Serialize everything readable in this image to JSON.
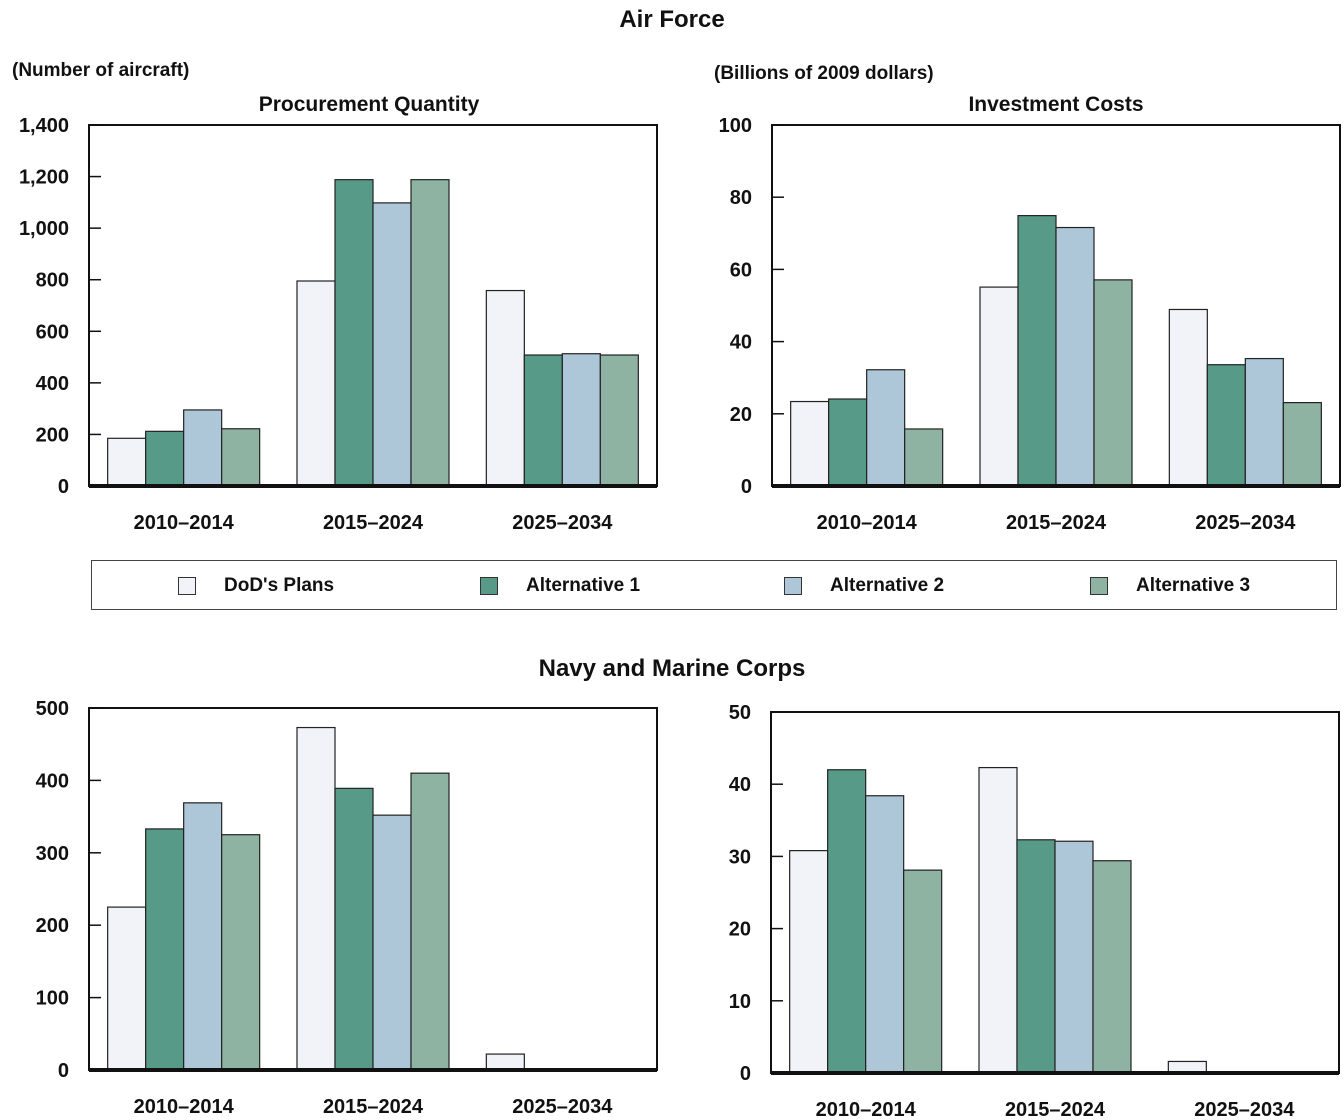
{
  "sections": {
    "air_force": "Air Force",
    "navy": "Navy and Marine Corps"
  },
  "units": {
    "quantity": "(Number of aircraft)",
    "cost": "(Billions of 2009 dollars)"
  },
  "legend": [
    {
      "label": "DoD's Plans",
      "color": "#f1f3f8"
    },
    {
      "label": "Alternative 1",
      "color": "#579a87"
    },
    {
      "label": "Alternative 2",
      "color": "#adc6d8"
    },
    {
      "label": "Alternative 3",
      "color": "#8fb3a2"
    }
  ],
  "chart_data": [
    {
      "id": "af-quantity",
      "type": "bar",
      "title": "Procurement Quantity",
      "categories": [
        "2010–2014",
        "2015–2024",
        "2025–2034"
      ],
      "ylim": [
        0,
        1400
      ],
      "yticks": [
        0,
        200,
        400,
        600,
        800,
        1000,
        1200,
        1400
      ],
      "ytick_labels": [
        "0",
        "200",
        "400",
        "600",
        "800",
        "1,000",
        "1,200",
        "1,400"
      ],
      "series": [
        {
          "name": "DoD's Plans",
          "values": [
            185,
            795,
            758
          ]
        },
        {
          "name": "Alternative 1",
          "values": [
            212,
            1188,
            508
          ]
        },
        {
          "name": "Alternative 2",
          "values": [
            295,
            1098,
            513
          ]
        },
        {
          "name": "Alternative 3",
          "values": [
            222,
            1188,
            508
          ]
        }
      ]
    },
    {
      "id": "af-cost",
      "type": "bar",
      "title": "Investment Costs",
      "categories": [
        "2010–2014",
        "2015–2024",
        "2025–2034"
      ],
      "ylim": [
        0,
        100
      ],
      "yticks": [
        0,
        20,
        40,
        60,
        80,
        100
      ],
      "ytick_labels": [
        "0",
        "20",
        "40",
        "60",
        "80",
        "100"
      ],
      "series": [
        {
          "name": "DoD's Plans",
          "values": [
            23.4,
            55.1,
            48.9
          ]
        },
        {
          "name": "Alternative 1",
          "values": [
            24.1,
            74.9,
            33.6
          ]
        },
        {
          "name": "Alternative 2",
          "values": [
            32.2,
            71.6,
            35.3
          ]
        },
        {
          "name": "Alternative 3",
          "values": [
            15.8,
            57.1,
            23.1
          ]
        }
      ]
    },
    {
      "id": "navy-quantity",
      "type": "bar",
      "title": "",
      "categories": [
        "2010–2014",
        "2015–2024",
        "2025–2034"
      ],
      "ylim": [
        0,
        500
      ],
      "yticks": [
        0,
        100,
        200,
        300,
        400,
        500
      ],
      "ytick_labels": [
        "0",
        "100",
        "200",
        "300",
        "400",
        "500"
      ],
      "series": [
        {
          "name": "DoD's Plans",
          "values": [
            225,
            473,
            22
          ]
        },
        {
          "name": "Alternative 1",
          "values": [
            333,
            389,
            0
          ]
        },
        {
          "name": "Alternative 2",
          "values": [
            369,
            352,
            0
          ]
        },
        {
          "name": "Alternative 3",
          "values": [
            325,
            410,
            0
          ]
        }
      ]
    },
    {
      "id": "navy-cost",
      "type": "bar",
      "title": "",
      "categories": [
        "2010–2014",
        "2015–2024",
        "2025–2034"
      ],
      "ylim": [
        0,
        50
      ],
      "yticks": [
        0,
        10,
        20,
        30,
        40,
        50
      ],
      "ytick_labels": [
        "0",
        "10",
        "20",
        "30",
        "40",
        "50"
      ],
      "series": [
        {
          "name": "DoD's Plans",
          "values": [
            30.8,
            42.3,
            1.6
          ]
        },
        {
          "name": "Alternative 1",
          "values": [
            42.0,
            32.3,
            0
          ]
        },
        {
          "name": "Alternative 2",
          "values": [
            38.4,
            32.1,
            0
          ]
        },
        {
          "name": "Alternative 3",
          "values": [
            28.1,
            29.4,
            0
          ]
        }
      ]
    }
  ]
}
